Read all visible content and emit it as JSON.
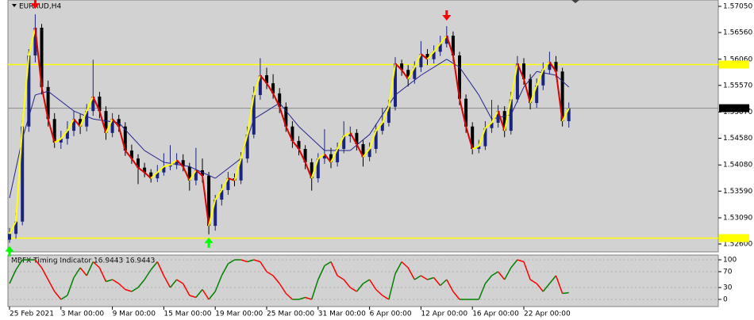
{
  "chart_data": [
    {
      "type": "candlestick",
      "title": "EURAUD,H4",
      "xticks": [
        {
          "value": 0,
          "label": "25 Feb 2021"
        },
        {
          "value": 8,
          "label": "3 Mar 00:00"
        },
        {
          "value": 16,
          "label": "9 Mar 00:00"
        },
        {
          "value": 24,
          "label": "15 Mar 00:00"
        },
        {
          "value": 32,
          "label": "19 Mar 00:00"
        },
        {
          "value": 40,
          "label": "25 Mar 00:00"
        },
        {
          "value": 48,
          "label": "31 Mar 00:00"
        },
        {
          "value": 56,
          "label": "6 Apr 00:00"
        },
        {
          "value": 64,
          "label": "12 Apr 00:00"
        },
        {
          "value": 72,
          "label": "16 Apr 00:00"
        },
        {
          "value": 80,
          "label": "22 Apr 00:00"
        }
      ],
      "ylim": [
        1.52452,
        1.57169
      ],
      "yticks": [
        {
          "value": 1.5705,
          "label": "1.57050"
        },
        {
          "value": 1.5656,
          "label": "1.56560"
        },
        {
          "value": 1.5606,
          "label": "1.56060"
        },
        {
          "value": 1.5557,
          "label": "1.55570"
        },
        {
          "value": 1.5507,
          "label": "1.55070"
        },
        {
          "value": 1.5458,
          "label": "1.54580"
        },
        {
          "value": 1.5408,
          "label": "1.54080"
        },
        {
          "value": 1.5359,
          "label": "1.53590"
        },
        {
          "value": 1.5309,
          "label": "1.53090"
        },
        {
          "value": 1.526,
          "label": "1.52600"
        }
      ],
      "open": [
        1.5268,
        1.5279,
        1.5302,
        1.548,
        1.5613,
        1.5665,
        1.5554,
        1.5494,
        1.545,
        1.5457,
        1.5472,
        1.5494,
        1.548,
        1.5509,
        1.5536,
        1.5509,
        1.5468,
        1.5494,
        1.548,
        1.5435,
        1.542,
        1.5403,
        1.5394,
        1.5383,
        1.5394,
        1.5405,
        1.5408,
        1.5417,
        1.5405,
        1.5379,
        1.5398,
        1.5388,
        1.5294,
        1.5343,
        1.5361,
        1.5383,
        1.5379,
        1.542,
        1.5465,
        1.5539,
        1.5576,
        1.5561,
        1.5542,
        1.5517,
        1.548,
        1.5453,
        1.5438,
        1.5413,
        1.5383,
        1.542,
        1.5428,
        1.5413,
        1.5438,
        1.5462,
        1.5468,
        1.5447,
        1.5423,
        1.5438,
        1.5472,
        1.5487,
        1.5517,
        1.5598,
        1.5586,
        1.5569,
        1.5591,
        1.5616,
        1.5606,
        1.562,
        1.5635,
        1.565,
        1.5613,
        1.5532,
        1.548,
        1.5438,
        1.5443,
        1.5477,
        1.5487,
        1.5509,
        1.5472,
        1.5531,
        1.5598,
        1.5569,
        1.5524,
        1.5557,
        1.5586,
        1.5601,
        1.5583,
        1.549
      ],
      "high": [
        1.529,
        1.5318,
        1.5492,
        1.5625,
        1.569,
        1.5672,
        1.5566,
        1.5505,
        1.5472,
        1.549,
        1.551,
        1.5503,
        1.5522,
        1.5605,
        1.5545,
        1.5518,
        1.5505,
        1.5502,
        1.5488,
        1.5446,
        1.5428,
        1.5412,
        1.54,
        1.5408,
        1.543,
        1.5445,
        1.543,
        1.5428,
        1.5412,
        1.544,
        1.542,
        1.5395,
        1.5352,
        1.5372,
        1.5395,
        1.5392,
        1.5432,
        1.548,
        1.5555,
        1.5608,
        1.559,
        1.5578,
        1.5552,
        1.5525,
        1.549,
        1.5462,
        1.5445,
        1.542,
        1.543,
        1.5475,
        1.544,
        1.545,
        1.549,
        1.548,
        1.5475,
        1.5455,
        1.545,
        1.5485,
        1.5515,
        1.553,
        1.561,
        1.5605,
        1.5595,
        1.5602,
        1.564,
        1.5625,
        1.5632,
        1.565,
        1.5668,
        1.5658,
        1.562,
        1.554,
        1.5488,
        1.5455,
        1.549,
        1.553,
        1.552,
        1.5518,
        1.5545,
        1.5612,
        1.5608,
        1.5578,
        1.557,
        1.56,
        1.562,
        1.5612,
        1.559,
        1.5525
      ],
      "low": [
        1.5262,
        1.527,
        1.5295,
        1.547,
        1.56,
        1.554,
        1.548,
        1.544,
        1.5438,
        1.5446,
        1.5462,
        1.5466,
        1.5471,
        1.55,
        1.5495,
        1.5455,
        1.546,
        1.547,
        1.5425,
        1.541,
        1.5372,
        1.5385,
        1.5375,
        1.5376,
        1.5388,
        1.5398,
        1.54,
        1.5396,
        1.536,
        1.537,
        1.5375,
        1.5278,
        1.5285,
        1.5332,
        1.5352,
        1.5368,
        1.5372,
        1.5412,
        1.5458,
        1.553,
        1.555,
        1.5532,
        1.5505,
        1.547,
        1.544,
        1.5426,
        1.54,
        1.536,
        1.5375,
        1.541,
        1.5402,
        1.5405,
        1.543,
        1.545,
        1.5435,
        1.5405,
        1.5415,
        1.543,
        1.5465,
        1.548,
        1.551,
        1.5575,
        1.5555,
        1.556,
        1.5582,
        1.5595,
        1.5598,
        1.5612,
        1.5628,
        1.5602,
        1.552,
        1.5468,
        1.5428,
        1.543,
        1.5436,
        1.5468,
        1.5478,
        1.546,
        1.5465,
        1.5525,
        1.5558,
        1.5512,
        1.5515,
        1.5548,
        1.5578,
        1.5572,
        1.548,
        1.5478
      ],
      "close": [
        1.5279,
        1.5302,
        1.548,
        1.5613,
        1.5665,
        1.5554,
        1.5494,
        1.545,
        1.5457,
        1.5472,
        1.5494,
        1.548,
        1.5509,
        1.5536,
        1.5509,
        1.5468,
        1.5494,
        1.548,
        1.5435,
        1.542,
        1.5403,
        1.5394,
        1.5383,
        1.5394,
        1.5405,
        1.5408,
        1.5417,
        1.5405,
        1.5379,
        1.5398,
        1.5388,
        1.5294,
        1.5343,
        1.5361,
        1.5383,
        1.5379,
        1.542,
        1.5465,
        1.5539,
        1.5576,
        1.5561,
        1.5542,
        1.5517,
        1.548,
        1.5453,
        1.5438,
        1.5413,
        1.5383,
        1.542,
        1.5428,
        1.5413,
        1.5438,
        1.5462,
        1.5468,
        1.5447,
        1.5423,
        1.5438,
        1.5472,
        1.5487,
        1.5517,
        1.5598,
        1.5586,
        1.5569,
        1.5591,
        1.5616,
        1.5606,
        1.562,
        1.5635,
        1.565,
        1.5613,
        1.5532,
        1.548,
        1.5438,
        1.5443,
        1.5477,
        1.5487,
        1.5509,
        1.5472,
        1.5531,
        1.5598,
        1.5569,
        1.5524,
        1.5557,
        1.5586,
        1.5601,
        1.5583,
        1.549,
        1.5514
      ],
      "up_color": "#1a237e",
      "down_color": "#000000",
      "rise_line_color": "#ffff00",
      "fall_line_color": "#e00000",
      "ma": {
        "color": "#23238e",
        "x": [
          0,
          2,
          4,
          6,
          10,
          13,
          17,
          21,
          24,
          28,
          32,
          36,
          38,
          42,
          45,
          49,
          53,
          56,
          60,
          64,
          68,
          70,
          73,
          75,
          78,
          80,
          82,
          85,
          87
        ],
        "values": [
          1.5346,
          1.5457,
          1.5539,
          1.5546,
          1.5509,
          1.5494,
          1.5487,
          1.5435,
          1.5413,
          1.5405,
          1.5383,
          1.542,
          1.5494,
          1.5524,
          1.548,
          1.5435,
          1.5435,
          1.5465,
          1.5539,
          1.5576,
          1.5606,
          1.5591,
          1.5539,
          1.5494,
          1.5502,
          1.5554,
          1.5583,
          1.5576,
          1.5554
        ]
      },
      "levels": [
        1.5596,
        1.5271
      ],
      "level_color": "#ffff00",
      "current_price": 1.55143,
      "sell_signals": [
        4,
        68
      ],
      "buy_signals": [
        0,
        31
      ],
      "sell_color": "#ff0000",
      "buy_color": "#00ff00"
    },
    {
      "type": "line",
      "title": "MBFX Timing Indicator 16.9443 16.9443",
      "values": [
        40,
        75,
        100,
        100,
        100,
        80,
        50,
        20,
        0,
        10,
        55,
        80,
        60,
        95,
        80,
        45,
        50,
        40,
        25,
        20,
        30,
        50,
        75,
        95,
        60,
        30,
        50,
        40,
        10,
        5,
        25,
        0,
        20,
        60,
        90,
        100,
        100,
        95,
        100,
        95,
        70,
        60,
        40,
        15,
        0,
        0,
        5,
        0,
        50,
        85,
        95,
        60,
        50,
        30,
        20,
        40,
        50,
        25,
        10,
        0,
        65,
        95,
        80,
        50,
        60,
        50,
        55,
        35,
        50,
        20,
        0,
        0,
        0,
        0,
        40,
        60,
        70,
        50,
        80,
        100,
        95,
        50,
        40,
        20,
        40,
        60,
        15,
        16.9443
      ],
      "ylim": [
        -18,
        112
      ],
      "yticks": [
        0,
        30,
        70,
        100
      ],
      "rise_color": "#008000",
      "fall_color": "#ff0000"
    }
  ]
}
